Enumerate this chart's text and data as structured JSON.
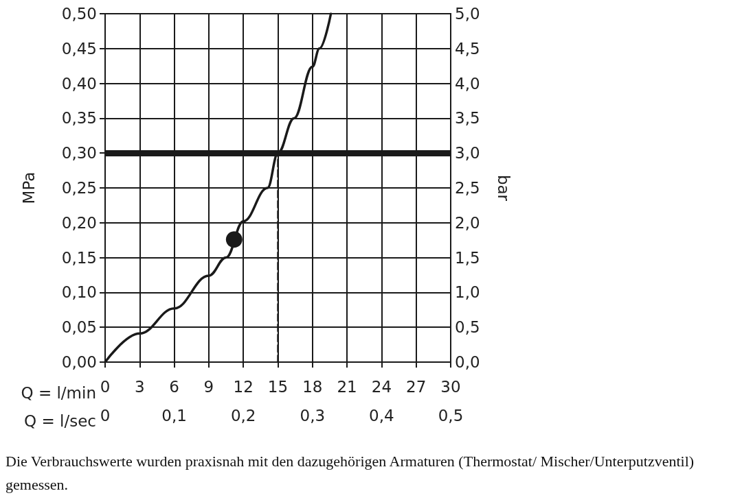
{
  "chart_data": {
    "type": "line",
    "xlabel": "Q = l/min",
    "x2label": "Q = l/sec",
    "ylabel": "MPa",
    "y2label": "bar",
    "xlim": [
      0,
      30
    ],
    "xticks": [
      0,
      3,
      6,
      9,
      12,
      15,
      18,
      21,
      24,
      27,
      30
    ],
    "x2lim": [
      0,
      0.5
    ],
    "x2ticks": [
      0,
      {
        "value": 0.1,
        "label": "0,1"
      },
      {
        "value": 0.2,
        "label": "0,2"
      },
      {
        "value": 0.3,
        "label": "0,3"
      },
      {
        "value": 0.4,
        "label": "0,4"
      },
      {
        "value": 0.5,
        "label": "0,5"
      }
    ],
    "ylim": [
      0,
      0.5
    ],
    "yticks": [
      {
        "value": 0,
        "label": "0,00"
      },
      {
        "value": 0.05,
        "label": "0,05"
      },
      {
        "value": 0.1,
        "label": "0,10"
      },
      {
        "value": 0.15,
        "label": "0,15"
      },
      {
        "value": 0.2,
        "label": "0,20"
      },
      {
        "value": 0.25,
        "label": "0,25"
      },
      {
        "value": 0.3,
        "label": "0,30"
      },
      {
        "value": 0.35,
        "label": "0,35"
      },
      {
        "value": 0.4,
        "label": "0,40"
      },
      {
        "value": 0.45,
        "label": "0,45"
      },
      {
        "value": 0.5,
        "label": "0,50"
      }
    ],
    "y2lim": [
      0,
      5
    ],
    "y2ticks": [
      {
        "value": 0,
        "label": "0,0"
      },
      {
        "value": 0.5,
        "label": "0,5"
      },
      {
        "value": 1,
        "label": "1,0"
      },
      {
        "value": 1.5,
        "label": "1,5"
      },
      {
        "value": 2,
        "label": "2,0"
      },
      {
        "value": 2.5,
        "label": "2,5"
      },
      {
        "value": 3,
        "label": "3,0"
      },
      {
        "value": 3.5,
        "label": "3,5"
      },
      {
        "value": 4,
        "label": "4,0"
      },
      {
        "value": 4.5,
        "label": "4,5"
      },
      {
        "value": 5,
        "label": "5,0"
      }
    ],
    "grid": true,
    "series": [
      {
        "color": "#1a1a1a",
        "x": [
          0,
          3,
          6,
          9,
          10.5,
          12,
          14.1,
          15,
          16.4,
          18,
          18.6,
          19.6
        ],
        "values": [
          0,
          0.041,
          0.077,
          0.124,
          0.15,
          0.202,
          0.25,
          0.3,
          0.35,
          0.424,
          0.45,
          0.5
        ]
      },
      {
        "type": "line",
        "color": "#1a1a1a",
        "line_style": "dashed",
        "x": [
          15,
          15
        ],
        "values": [
          0,
          0.3
        ]
      },
      {
        "type": "scatter",
        "color": "#1a1a1a",
        "x": [
          11.2
        ],
        "values": [
          0.176
        ]
      }
    ],
    "ref_lines": [
      {
        "axis": "y",
        "value": 0.3,
        "color": "#1a1a1a"
      }
    ],
    "annotations": [
      "Die Verbrauchswerte wurden praxisnah mit den dazugehörigen Armaturen (Thermostat/ Mischer/Unterputzventil) gemessen."
    ]
  }
}
